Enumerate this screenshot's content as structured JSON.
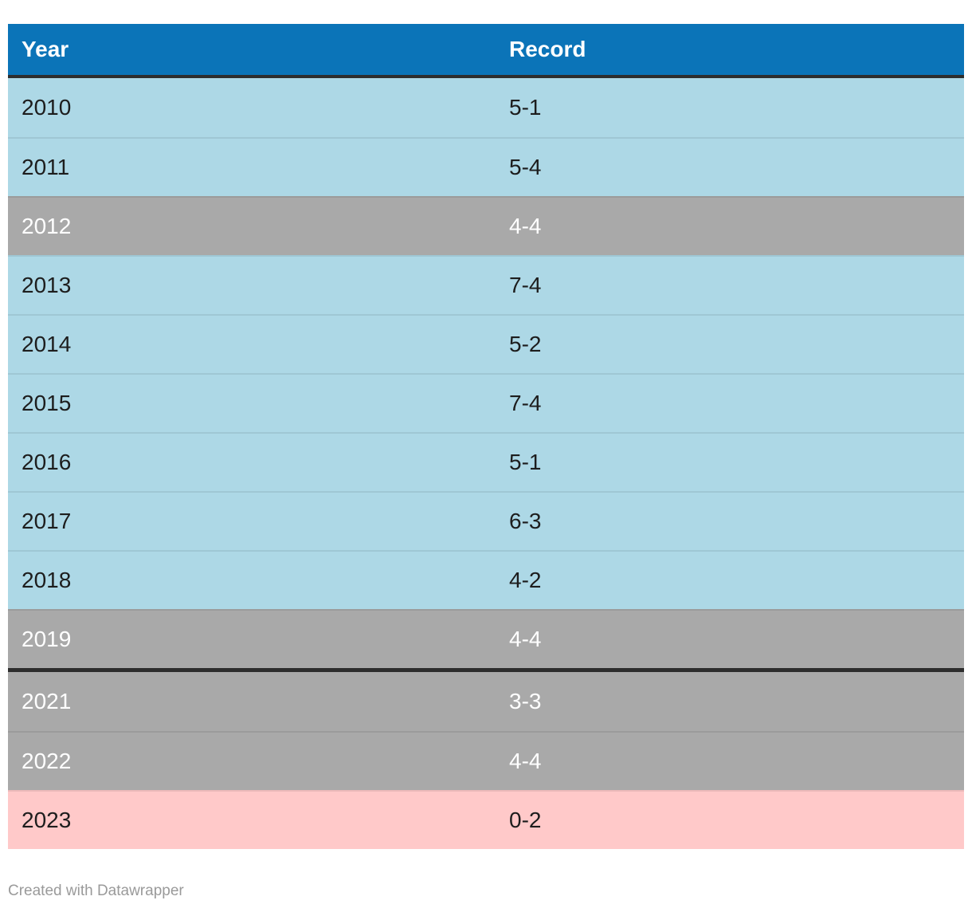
{
  "chart_data": {
    "type": "table",
    "columns": [
      "Year",
      "Record"
    ],
    "rows": [
      [
        "2010",
        "5-1"
      ],
      [
        "2011",
        "5-4"
      ],
      [
        "2012",
        "4-4"
      ],
      [
        "2013",
        "7-4"
      ],
      [
        "2014",
        "5-2"
      ],
      [
        "2015",
        "7-4"
      ],
      [
        "2016",
        "5-1"
      ],
      [
        "2017",
        "6-3"
      ],
      [
        "2018",
        "4-2"
      ],
      [
        "2019",
        "4-4"
      ],
      [
        "2021",
        "3-3"
      ],
      [
        "2022",
        "4-4"
      ],
      [
        "2023",
        "0-2"
      ]
    ],
    "title": "",
    "legend_position": "none",
    "notes": "thick dark divider between 2019 and 2021 rows (missing 2020 season)"
  },
  "table": {
    "header": {
      "year_label": "Year",
      "record_label": "Record"
    },
    "rows": [
      {
        "year": "2010",
        "record": "5-1",
        "style": "blue",
        "divider_after": false
      },
      {
        "year": "2011",
        "record": "5-4",
        "style": "blue",
        "divider_after": false
      },
      {
        "year": "2012",
        "record": "4-4",
        "style": "gray",
        "divider_after": false
      },
      {
        "year": "2013",
        "record": "7-4",
        "style": "blue",
        "divider_after": false
      },
      {
        "year": "2014",
        "record": "5-2",
        "style": "blue",
        "divider_after": false
      },
      {
        "year": "2015",
        "record": "7-4",
        "style": "blue",
        "divider_after": false
      },
      {
        "year": "2016",
        "record": "5-1",
        "style": "blue",
        "divider_after": false
      },
      {
        "year": "2017",
        "record": "6-3",
        "style": "blue",
        "divider_after": false
      },
      {
        "year": "2018",
        "record": "4-2",
        "style": "blue",
        "divider_after": false
      },
      {
        "year": "2019",
        "record": "4-4",
        "style": "gray",
        "divider_after": true
      },
      {
        "year": "2021",
        "record": "3-3",
        "style": "gray",
        "divider_after": false
      },
      {
        "year": "2022",
        "record": "4-4",
        "style": "gray",
        "divider_after": false
      },
      {
        "year": "2023",
        "record": "0-2",
        "style": "pink",
        "divider_after": false
      }
    ]
  },
  "footer": {
    "credit": "Created with Datawrapper"
  },
  "colors": {
    "header_bg": "#0b74b8",
    "row_blue": "#add8e6",
    "row_gray": "#a9a9a9",
    "row_pink": "#ffc9c9",
    "divider": "#2d2d2d",
    "credit_text": "#9a9a9a"
  }
}
